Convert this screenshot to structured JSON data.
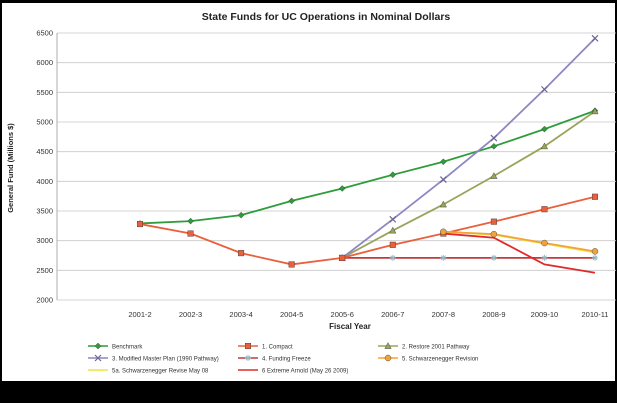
{
  "chart_data": {
    "type": "line",
    "title": "State Funds for UC Operations in Nominal Dollars",
    "xlabel": "Fiscal Year",
    "ylabel": "General Fund (Millions $)",
    "ylim": [
      2000,
      6500
    ],
    "yticks": [
      2000,
      2500,
      3000,
      3500,
      4000,
      4500,
      5000,
      5500,
      6000,
      6500
    ],
    "grid": "horizontal",
    "legend_position": "bottom",
    "categories": [
      "2001-2",
      "2002-3",
      "2003-4",
      "2004-5",
      "2005-6",
      "2006-7",
      "2007-8",
      "2008-9",
      "2009-10",
      "2010-11"
    ],
    "series": [
      {
        "name": "Benchmark",
        "color": "#2e9c3a",
        "marker": "diamond",
        "values": [
          3290,
          3330,
          3430,
          3670,
          3880,
          4110,
          4330,
          4590,
          4880,
          5190
        ]
      },
      {
        "name": "1. Compact",
        "color": "#e8603c",
        "marker": "square",
        "values": [
          3280,
          3120,
          2790,
          2600,
          2710,
          2930,
          3120,
          3320,
          3530,
          3740
        ]
      },
      {
        "name": "2. Restore 2001 Pathway",
        "color": "#9aa35a",
        "marker": "triangle",
        "values": [
          null,
          null,
          null,
          null,
          2710,
          3170,
          3610,
          4090,
          4590,
          5180
        ]
      },
      {
        "name": "3. Modified Master Plan (1990 Pathway)",
        "color": "#8f86c4",
        "marker": "x",
        "values": [
          null,
          null,
          null,
          null,
          2710,
          3360,
          4030,
          4730,
          5550,
          6410
        ]
      },
      {
        "name": "4. Funding Freeze",
        "color": "#c33a3a",
        "marker": "star",
        "values": [
          null,
          null,
          null,
          null,
          2710,
          2710,
          2710,
          2710,
          2710,
          2710
        ]
      },
      {
        "name": "5. Schwarzenegger Revision",
        "color": "#f2a23a",
        "marker": "circle",
        "values": [
          null,
          null,
          null,
          null,
          null,
          null,
          3150,
          3110,
          2960,
          2820
        ]
      },
      {
        "name": "5a. Schwarzenegger Revise May 08",
        "color": "#f3e33a",
        "marker": "none",
        "values": [
          null,
          null,
          null,
          null,
          null,
          null,
          3150,
          3100,
          2950,
          2800
        ]
      },
      {
        "name": "6 Extreme Arnold (May 26 2009)",
        "color": "#e02a2a",
        "marker": "none",
        "values": [
          null,
          null,
          null,
          null,
          null,
          null,
          3120,
          3050,
          2600,
          2460
        ]
      }
    ]
  }
}
